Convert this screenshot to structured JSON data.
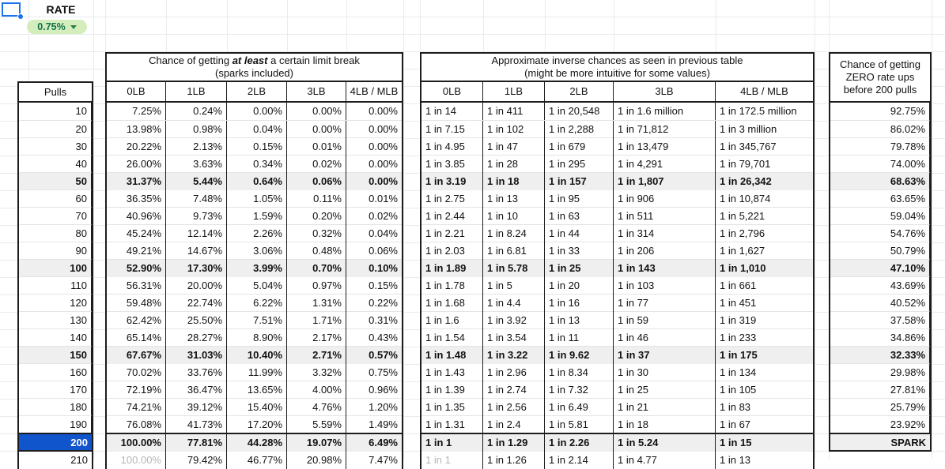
{
  "rate": {
    "label": "RATE",
    "value": "0.75%"
  },
  "pulls_header": "Pulls",
  "chance_table": {
    "title_prefix": "Chance of getting ",
    "title_emphasis": "at least",
    "title_suffix": " a certain limit break",
    "title_line2": "(sparks included)",
    "columns": [
      "0LB",
      "1LB",
      "2LB",
      "3LB",
      "4LB / MLB"
    ]
  },
  "inverse_table": {
    "title_line1": "Approximate inverse chances as seen in previous table",
    "title_line2": "(might be more intuitive for some values)",
    "columns": [
      "0LB",
      "1LB",
      "2LB",
      "3LB",
      "4LB / MLB"
    ]
  },
  "zero_table": {
    "title_lines": [
      "Chance of getting",
      "ZERO rate ups",
      "before 200 pulls"
    ]
  },
  "colors": {
    "selection_blue": "#1a73e8",
    "chip_bg_green": "#d4edbc",
    "chip_text_green": "#11734b",
    "highlight_row_bg": "#efefef",
    "pulls_200_bg": "#1155cc",
    "muted_text": "#b6b6b6"
  },
  "rows": [
    {
      "pulls": "10",
      "chance": [
        "7.25%",
        "0.24%",
        "0.00%",
        "0.00%",
        "0.00%"
      ],
      "inverse": [
        "1 in 14",
        "1 in 411",
        "1 in 20,548",
        "1 in 1.6 million",
        "1 in 172.5 million"
      ],
      "zero": "92.75%",
      "bold": false
    },
    {
      "pulls": "20",
      "chance": [
        "13.98%",
        "0.98%",
        "0.04%",
        "0.00%",
        "0.00%"
      ],
      "inverse": [
        "1 in 7.15",
        "1 in 102",
        "1 in 2,288",
        "1 in 71,812",
        "1 in 3 million"
      ],
      "zero": "86.02%",
      "bold": false
    },
    {
      "pulls": "30",
      "chance": [
        "20.22%",
        "2.13%",
        "0.15%",
        "0.01%",
        "0.00%"
      ],
      "inverse": [
        "1 in 4.95",
        "1 in 47",
        "1 in 679",
        "1 in 13,479",
        "1 in 345,767"
      ],
      "zero": "79.78%",
      "bold": false
    },
    {
      "pulls": "40",
      "chance": [
        "26.00%",
        "3.63%",
        "0.34%",
        "0.02%",
        "0.00%"
      ],
      "inverse": [
        "1 in 3.85",
        "1 in 28",
        "1 in 295",
        "1 in 4,291",
        "1 in 79,701"
      ],
      "zero": "74.00%",
      "bold": false
    },
    {
      "pulls": "50",
      "chance": [
        "31.37%",
        "5.44%",
        "0.64%",
        "0.06%",
        "0.00%"
      ],
      "inverse": [
        "1 in 3.19",
        "1 in 18",
        "1 in 157",
        "1 in 1,807",
        "1 in 26,342"
      ],
      "zero": "68.63%",
      "bold": true
    },
    {
      "pulls": "60",
      "chance": [
        "36.35%",
        "7.48%",
        "1.05%",
        "0.11%",
        "0.01%"
      ],
      "inverse": [
        "1 in 2.75",
        "1 in 13",
        "1 in 95",
        "1 in 906",
        "1 in 10,874"
      ],
      "zero": "63.65%",
      "bold": false
    },
    {
      "pulls": "70",
      "chance": [
        "40.96%",
        "9.73%",
        "1.59%",
        "0.20%",
        "0.02%"
      ],
      "inverse": [
        "1 in 2.44",
        "1 in 10",
        "1 in 63",
        "1 in 511",
        "1 in 5,221"
      ],
      "zero": "59.04%",
      "bold": false
    },
    {
      "pulls": "80",
      "chance": [
        "45.24%",
        "12.14%",
        "2.26%",
        "0.32%",
        "0.04%"
      ],
      "inverse": [
        "1 in 2.21",
        "1 in 8.24",
        "1 in 44",
        "1 in 314",
        "1 in 2,796"
      ],
      "zero": "54.76%",
      "bold": false
    },
    {
      "pulls": "90",
      "chance": [
        "49.21%",
        "14.67%",
        "3.06%",
        "0.48%",
        "0.06%"
      ],
      "inverse": [
        "1 in 2.03",
        "1 in 6.81",
        "1 in 33",
        "1 in 206",
        "1 in 1,627"
      ],
      "zero": "50.79%",
      "bold": false
    },
    {
      "pulls": "100",
      "chance": [
        "52.90%",
        "17.30%",
        "3.99%",
        "0.70%",
        "0.10%"
      ],
      "inverse": [
        "1 in 1.89",
        "1 in 5.78",
        "1 in 25",
        "1 in 143",
        "1 in 1,010"
      ],
      "zero": "47.10%",
      "bold": true
    },
    {
      "pulls": "110",
      "chance": [
        "56.31%",
        "20.00%",
        "5.04%",
        "0.97%",
        "0.15%"
      ],
      "inverse": [
        "1 in 1.78",
        "1 in 5",
        "1 in 20",
        "1 in 103",
        "1 in 661"
      ],
      "zero": "43.69%",
      "bold": false
    },
    {
      "pulls": "120",
      "chance": [
        "59.48%",
        "22.74%",
        "6.22%",
        "1.31%",
        "0.22%"
      ],
      "inverse": [
        "1 in 1.68",
        "1 in 4.4",
        "1 in 16",
        "1 in 77",
        "1 in 451"
      ],
      "zero": "40.52%",
      "bold": false
    },
    {
      "pulls": "130",
      "chance": [
        "62.42%",
        "25.50%",
        "7.51%",
        "1.71%",
        "0.31%"
      ],
      "inverse": [
        "1 in 1.6",
        "1 in 3.92",
        "1 in 13",
        "1 in 59",
        "1 in 319"
      ],
      "zero": "37.58%",
      "bold": false
    },
    {
      "pulls": "140",
      "chance": [
        "65.14%",
        "28.27%",
        "8.90%",
        "2.17%",
        "0.43%"
      ],
      "inverse": [
        "1 in 1.54",
        "1 in 3.54",
        "1 in 11",
        "1 in 46",
        "1 in 233"
      ],
      "zero": "34.86%",
      "bold": false
    },
    {
      "pulls": "150",
      "chance": [
        "67.67%",
        "31.03%",
        "10.40%",
        "2.71%",
        "0.57%"
      ],
      "inverse": [
        "1 in 1.48",
        "1 in 3.22",
        "1 in 9.62",
        "1 in 37",
        "1 in 175"
      ],
      "zero": "32.33%",
      "bold": true
    },
    {
      "pulls": "160",
      "chance": [
        "70.02%",
        "33.76%",
        "11.99%",
        "3.32%",
        "0.75%"
      ],
      "inverse": [
        "1 in 1.43",
        "1 in 2.96",
        "1 in 8.34",
        "1 in 30",
        "1 in 134"
      ],
      "zero": "29.98%",
      "bold": false
    },
    {
      "pulls": "170",
      "chance": [
        "72.19%",
        "36.47%",
        "13.65%",
        "4.00%",
        "0.96%"
      ],
      "inverse": [
        "1 in 1.39",
        "1 in 2.74",
        "1 in 7.32",
        "1 in 25",
        "1 in 105"
      ],
      "zero": "27.81%",
      "bold": false
    },
    {
      "pulls": "180",
      "chance": [
        "74.21%",
        "39.12%",
        "15.40%",
        "4.76%",
        "1.20%"
      ],
      "inverse": [
        "1 in 1.35",
        "1 in 2.56",
        "1 in 6.49",
        "1 in 21",
        "1 in 83"
      ],
      "zero": "25.79%",
      "bold": false
    },
    {
      "pulls": "190",
      "chance": [
        "76.08%",
        "41.73%",
        "17.20%",
        "5.59%",
        "1.49%"
      ],
      "inverse": [
        "1 in 1.31",
        "1 in 2.4",
        "1 in 5.81",
        "1 in 18",
        "1 in 67"
      ],
      "zero": "23.92%",
      "bold": false
    },
    {
      "pulls": "200",
      "chance": [
        "100.00%",
        "77.81%",
        "44.28%",
        "19.07%",
        "6.49%"
      ],
      "inverse": [
        "1 in 1",
        "1 in 1.29",
        "1 in 2.26",
        "1 in 5.24",
        "1 in 15"
      ],
      "zero": "SPARK",
      "bold": true,
      "selected": true
    },
    {
      "pulls": "210",
      "chance": [
        "100.00%",
        "79.42%",
        "46.77%",
        "20.98%",
        "7.47%"
      ],
      "inverse": [
        "1 in 1",
        "1 in 1.26",
        "1 in 2.14",
        "1 in 4.77",
        "1 in 13"
      ],
      "bold": false,
      "muted_first": true
    }
  ]
}
